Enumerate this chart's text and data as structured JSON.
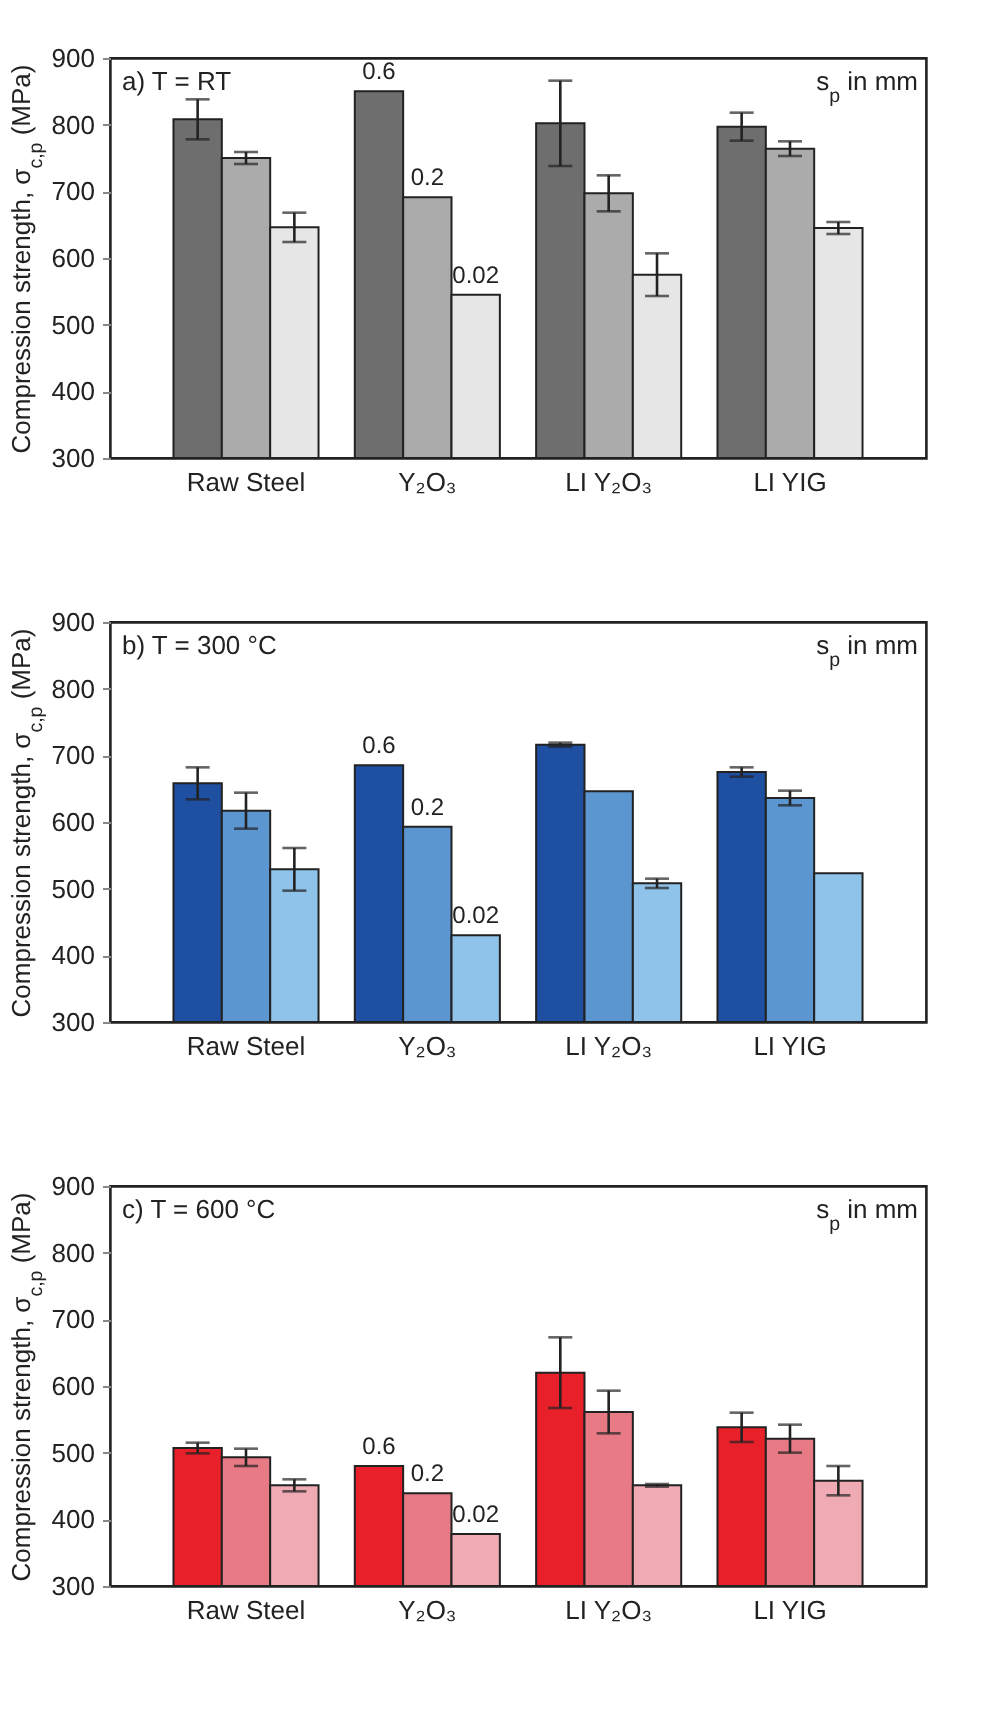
{
  "chart_data": [
    {
      "type": "bar",
      "title": "a) T = RT",
      "legend_title": "s$_{p}$ in mm",
      "ylabel": "Compression strength, σ$_{c,p}$ (MPa)",
      "categories": [
        "Raw Steel",
        "Y₂O₃",
        "LI Y₂O₃",
        "LI YIG"
      ],
      "ylim": [
        300,
        900
      ],
      "yticks": [
        300,
        400,
        500,
        600,
        700,
        800,
        900
      ],
      "series": [
        {
          "name": "0.6",
          "color": "#6e6e6e",
          "values": [
            808,
            850,
            802,
            797
          ],
          "errors": [
            30,
            null,
            64,
            21
          ]
        },
        {
          "name": "0.2",
          "color": "#ababab",
          "values": [
            750,
            691,
            697,
            764
          ],
          "errors": [
            9,
            null,
            27,
            11
          ]
        },
        {
          "name": "0.02",
          "color": "#e6e6e6",
          "values": [
            646,
            545,
            575,
            645
          ],
          "errors": [
            22,
            null,
            32,
            9
          ]
        }
      ]
    },
    {
      "type": "bar",
      "title": "b) T = 300 °C",
      "legend_title": "s$_{p}$ in mm",
      "ylabel": "Compression strength, σ$_{c,p}$ (MPa)",
      "categories": [
        "Raw Steel",
        "Y₂O₃",
        "LI Y₂O₃",
        "LI YIG"
      ],
      "ylim": [
        300,
        900
      ],
      "yticks": [
        300,
        400,
        500,
        600,
        700,
        800,
        900
      ],
      "series": [
        {
          "name": "0.6",
          "color": "#1f4fa0",
          "values": [
            658,
            685,
            716,
            675
          ],
          "errors": [
            24,
            null,
            3,
            7
          ]
        },
        {
          "name": "0.2",
          "color": "#5b96d0",
          "values": [
            617,
            593,
            646,
            636
          ],
          "errors": [
            27,
            null,
            null,
            11
          ]
        },
        {
          "name": "0.02",
          "color": "#8fc3ea",
          "values": [
            529,
            430,
            508,
            523
          ],
          "errors": [
            32,
            null,
            7,
            null
          ]
        }
      ]
    },
    {
      "type": "bar",
      "title": "c) T = 600 °C",
      "legend_title": "s$_{p}$ in mm",
      "ylabel": "Compression strength, σ$_{c,p}$ (MPa)",
      "categories": [
        "Raw Steel",
        "Y₂O₃",
        "LI Y₂O₃",
        "LI YIG"
      ],
      "ylim": [
        300,
        900
      ],
      "yticks": [
        300,
        400,
        500,
        600,
        700,
        800,
        900
      ],
      "series": [
        {
          "name": "0.6",
          "color": "#e8202a",
          "values": [
            507,
            480,
            620,
            538
          ],
          "errors": [
            8,
            null,
            53,
            22
          ]
        },
        {
          "name": "0.2",
          "color": "#e87a86",
          "values": [
            493,
            439,
            561,
            521
          ],
          "errors": [
            13,
            null,
            32,
            21
          ]
        },
        {
          "name": "0.02",
          "color": "#f0aab4",
          "values": [
            451,
            378,
            451,
            458
          ],
          "errors": [
            9,
            null,
            2,
            22
          ]
        }
      ]
    }
  ]
}
